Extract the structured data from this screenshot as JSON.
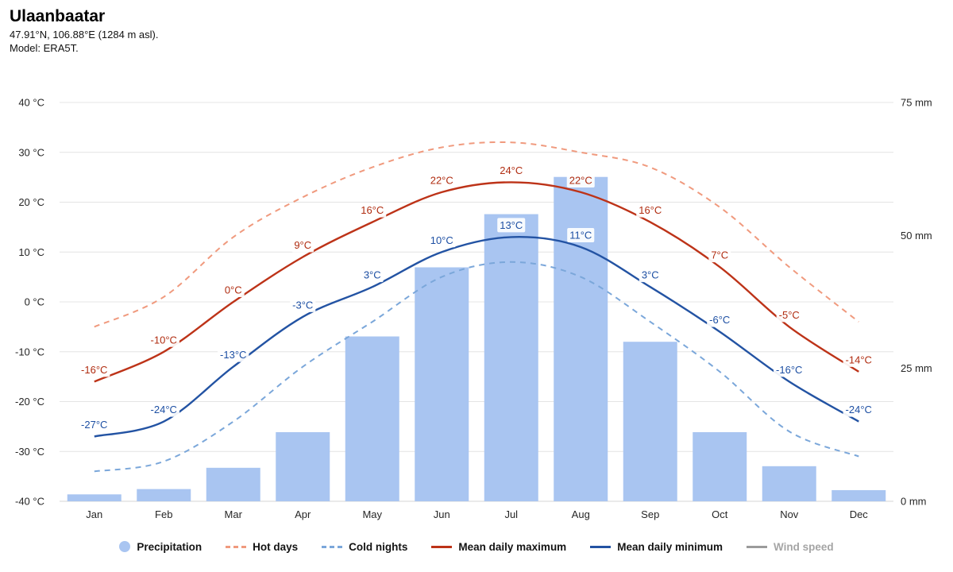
{
  "header": {
    "title": "Ulaanbaatar",
    "subtitle": "47.91°N, 106.88°E (1284 m asl).",
    "model": "Model: ERA5T."
  },
  "chart_data": {
    "type": "bar+line",
    "title": "Ulaanbaatar",
    "categories": [
      "Jan",
      "Feb",
      "Mar",
      "Apr",
      "May",
      "Jun",
      "Jul",
      "Aug",
      "Sep",
      "Oct",
      "Nov",
      "Dec"
    ],
    "bars": {
      "name": "Precipitation",
      "unit": "mm",
      "color": "#a9c5f1",
      "values": [
        1.3,
        2.3,
        6.3,
        13,
        31,
        44,
        54,
        61,
        30,
        13,
        6.6,
        2.1
      ]
    },
    "unit_temp": "°C",
    "series": [
      {
        "name": "Hot days",
        "style": "dashed",
        "color": "#f09a7e",
        "width": 2,
        "point_labels": false,
        "values": [
          -5,
          1,
          13,
          21,
          27,
          31,
          32,
          30,
          27,
          19,
          7,
          -4
        ]
      },
      {
        "name": "Cold nights",
        "style": "dashed",
        "color": "#7ba7da",
        "width": 2,
        "point_labels": false,
        "values": [
          -34,
          -32,
          -24,
          -13,
          -4,
          5,
          8,
          5,
          -4,
          -14,
          -26,
          -31
        ]
      },
      {
        "name": "Mean daily maximum",
        "style": "solid",
        "color": "#bd3318",
        "label_color": "#b02c10",
        "width": 2.4,
        "point_labels": true,
        "values": [
          -16,
          -10,
          0,
          9,
          16,
          22,
          24,
          22,
          16,
          7,
          -5,
          -14
        ]
      },
      {
        "name": "Mean daily minimum",
        "style": "solid",
        "color": "#2353a3",
        "label_color": "#1d4fa3",
        "width": 2.4,
        "point_labels": true,
        "values": [
          -27,
          -24,
          -13,
          -3,
          3,
          10,
          13,
          11,
          3,
          -6,
          -16,
          -24
        ]
      }
    ],
    "axes": {
      "left": {
        "min": -40,
        "max": 40,
        "tick_values": [
          40,
          30,
          20,
          10,
          0,
          -10,
          -20,
          -30,
          -40
        ],
        "tick_labels": [
          "40 °C",
          "30 °C",
          "20 °C",
          "10 °C",
          "0 °C",
          "-10 °C",
          "-20 °C",
          "-30 °C",
          "-40 °C"
        ]
      },
      "right": {
        "min": 0,
        "max": 75,
        "tick_values": [
          75,
          50,
          25,
          0
        ],
        "tick_labels": [
          "75 mm",
          "50 mm",
          "25 mm",
          "0 mm"
        ]
      }
    },
    "grid": true,
    "legend_position": "bottom"
  },
  "legend": {
    "items": [
      {
        "label": "Precipitation",
        "swatch": "circle",
        "color": "#a9c5f1",
        "enabled": true
      },
      {
        "label": "Hot days",
        "swatch": "dashed",
        "color": "#f09a7e",
        "enabled": true
      },
      {
        "label": "Cold nights",
        "swatch": "dashed",
        "color": "#7ba7da",
        "enabled": true
      },
      {
        "label": "Mean daily maximum",
        "swatch": "solid",
        "color": "#bd3318",
        "enabled": true
      },
      {
        "label": "Mean daily minimum",
        "swatch": "solid",
        "color": "#2353a3",
        "enabled": true
      },
      {
        "label": "Wind speed",
        "swatch": "solid",
        "color": "#9b9b9b",
        "enabled": false
      }
    ]
  }
}
